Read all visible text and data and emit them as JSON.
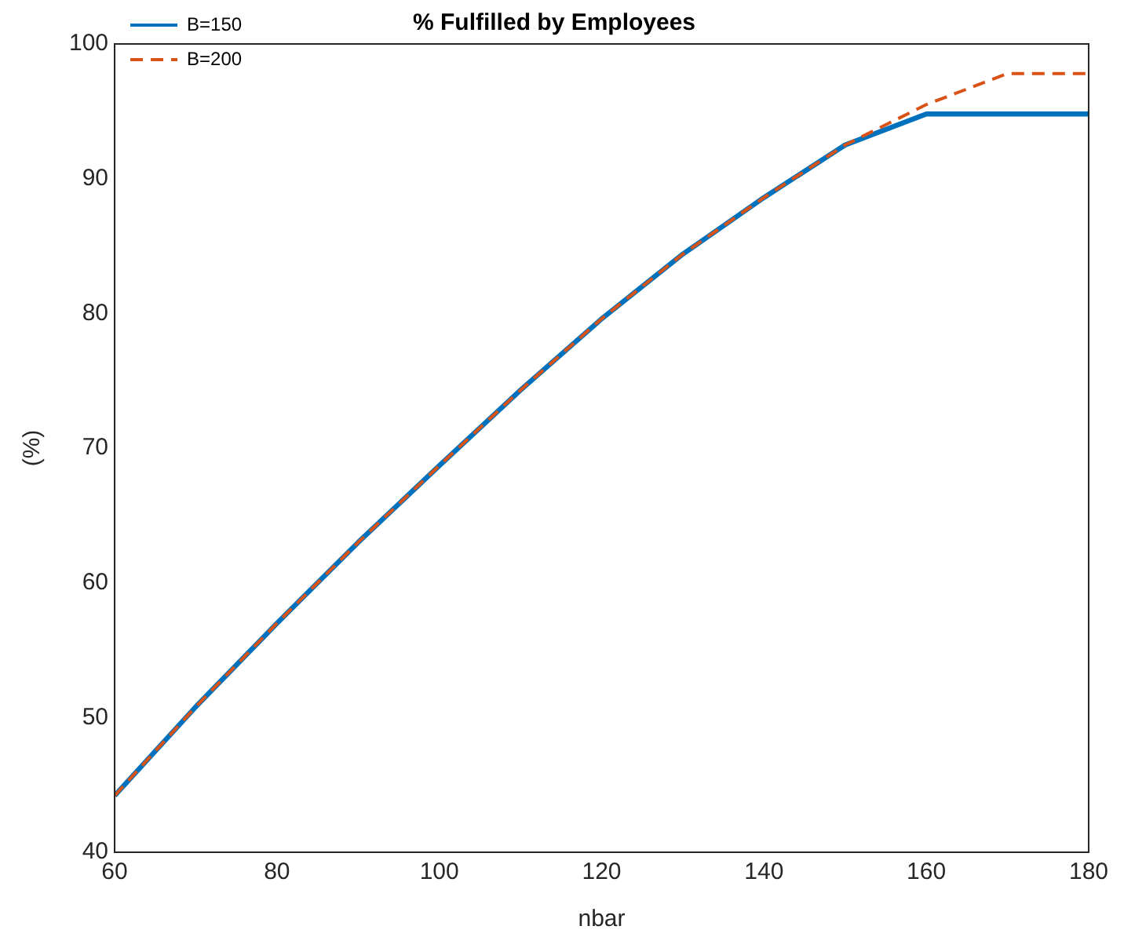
{
  "chart_data": {
    "type": "line",
    "title": "% Fulfilled by Employees",
    "xlabel": "nbar",
    "ylabel": "(%)",
    "x": [
      60,
      70,
      80,
      90,
      100,
      110,
      120,
      130,
      140,
      150,
      160,
      170,
      180
    ],
    "series": [
      {
        "name": "B=150",
        "color": "#0072bd",
        "line_style": "solid",
        "values": [
          44.2,
          50.8,
          57.0,
          63.0,
          68.7,
          74.3,
          79.6,
          84.4,
          88.6,
          92.5,
          94.8,
          94.8,
          94.8
        ]
      },
      {
        "name": "B=200",
        "color": "#d95319",
        "line_style": "dashed",
        "values": [
          44.2,
          50.8,
          57.0,
          63.0,
          68.7,
          74.3,
          79.6,
          84.4,
          88.6,
          92.5,
          95.5,
          97.8,
          97.8
        ]
      }
    ],
    "xlim": [
      60,
      180
    ],
    "xticks": [
      60,
      80,
      100,
      120,
      140,
      160,
      180
    ],
    "ylim": [
      40,
      100
    ],
    "yticks": [
      40,
      50,
      60,
      70,
      80,
      90,
      100
    ],
    "grid": false,
    "legend": "top left",
    "marker": "none"
  }
}
